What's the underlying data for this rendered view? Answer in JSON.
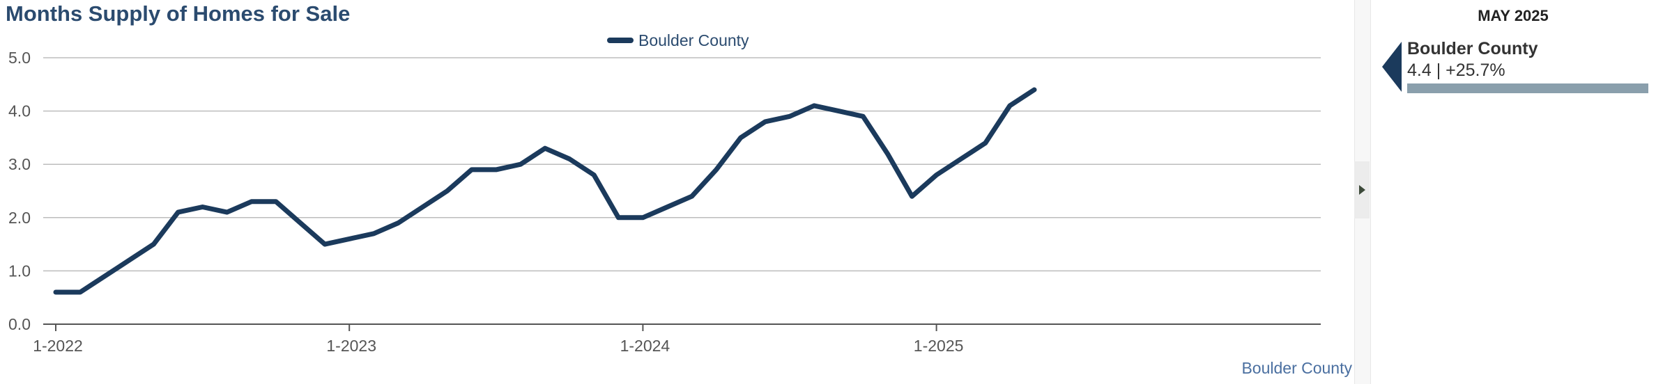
{
  "title": "Months Supply of Homes for Sale",
  "colors": {
    "series": "#1b3a5c",
    "title": "#2b4b6f",
    "side_bar": "#8a9fac"
  },
  "chart_data": {
    "type": "line",
    "title": "Months Supply of Homes for Sale",
    "xlabel": "Boulder County",
    "ylabel": "",
    "ylim": [
      0,
      5
    ],
    "yticks": [
      "0.0",
      "1.0",
      "2.0",
      "3.0",
      "4.0",
      "5.0"
    ],
    "xtick_labels": [
      "1-2022",
      "1-2023",
      "1-2024",
      "1-2025"
    ],
    "x": [
      "1-2022",
      "2-2022",
      "3-2022",
      "4-2022",
      "5-2022",
      "6-2022",
      "7-2022",
      "8-2022",
      "9-2022",
      "10-2022",
      "11-2022",
      "12-2022",
      "1-2023",
      "2-2023",
      "3-2023",
      "4-2023",
      "5-2023",
      "6-2023",
      "7-2023",
      "8-2023",
      "9-2023",
      "10-2023",
      "11-2023",
      "12-2023",
      "1-2024",
      "2-2024",
      "3-2024",
      "4-2024",
      "5-2024",
      "6-2024",
      "7-2024",
      "8-2024",
      "9-2024",
      "10-2024",
      "11-2024",
      "12-2024",
      "1-2025",
      "2-2025",
      "3-2025",
      "4-2025",
      "5-2025"
    ],
    "grid": true,
    "legend": "top-center",
    "series": [
      {
        "name": "Boulder County",
        "values": [
          0.6,
          0.6,
          0.9,
          1.2,
          1.5,
          2.1,
          2.2,
          2.1,
          2.3,
          2.3,
          1.9,
          1.5,
          1.6,
          1.7,
          1.9,
          2.2,
          2.5,
          2.9,
          2.9,
          3.0,
          3.3,
          3.1,
          2.8,
          2.0,
          2.0,
          2.2,
          2.4,
          2.9,
          3.5,
          3.8,
          3.9,
          4.1,
          4.0,
          3.9,
          3.2,
          2.4,
          2.8,
          3.1,
          3.4,
          4.1,
          4.4
        ]
      }
    ]
  },
  "side_panel": {
    "period": "MAY 2025",
    "name": "Boulder County",
    "value_text": "4.4 | +25.7%",
    "bar_fraction": 1.0
  }
}
